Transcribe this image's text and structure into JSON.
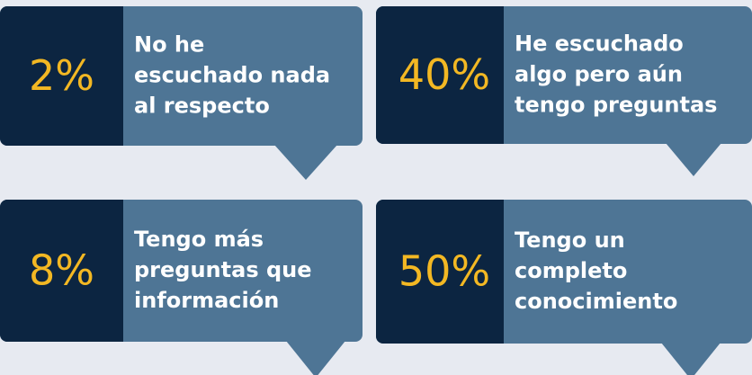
{
  "cards": [
    {
      "value": "2%",
      "lines": [
        "No he",
        "escuchado nada",
        "al respecto"
      ]
    },
    {
      "value": "40%",
      "lines": [
        "He escuchado",
        "algo pero aún",
        "tengo preguntas"
      ]
    },
    {
      "value": "8%",
      "lines": [
        "Tengo más",
        "preguntas que",
        "información"
      ]
    },
    {
      "value": "50%",
      "lines": [
        "Tengo un",
        "completo",
        "conocimiento"
      ]
    }
  ]
}
